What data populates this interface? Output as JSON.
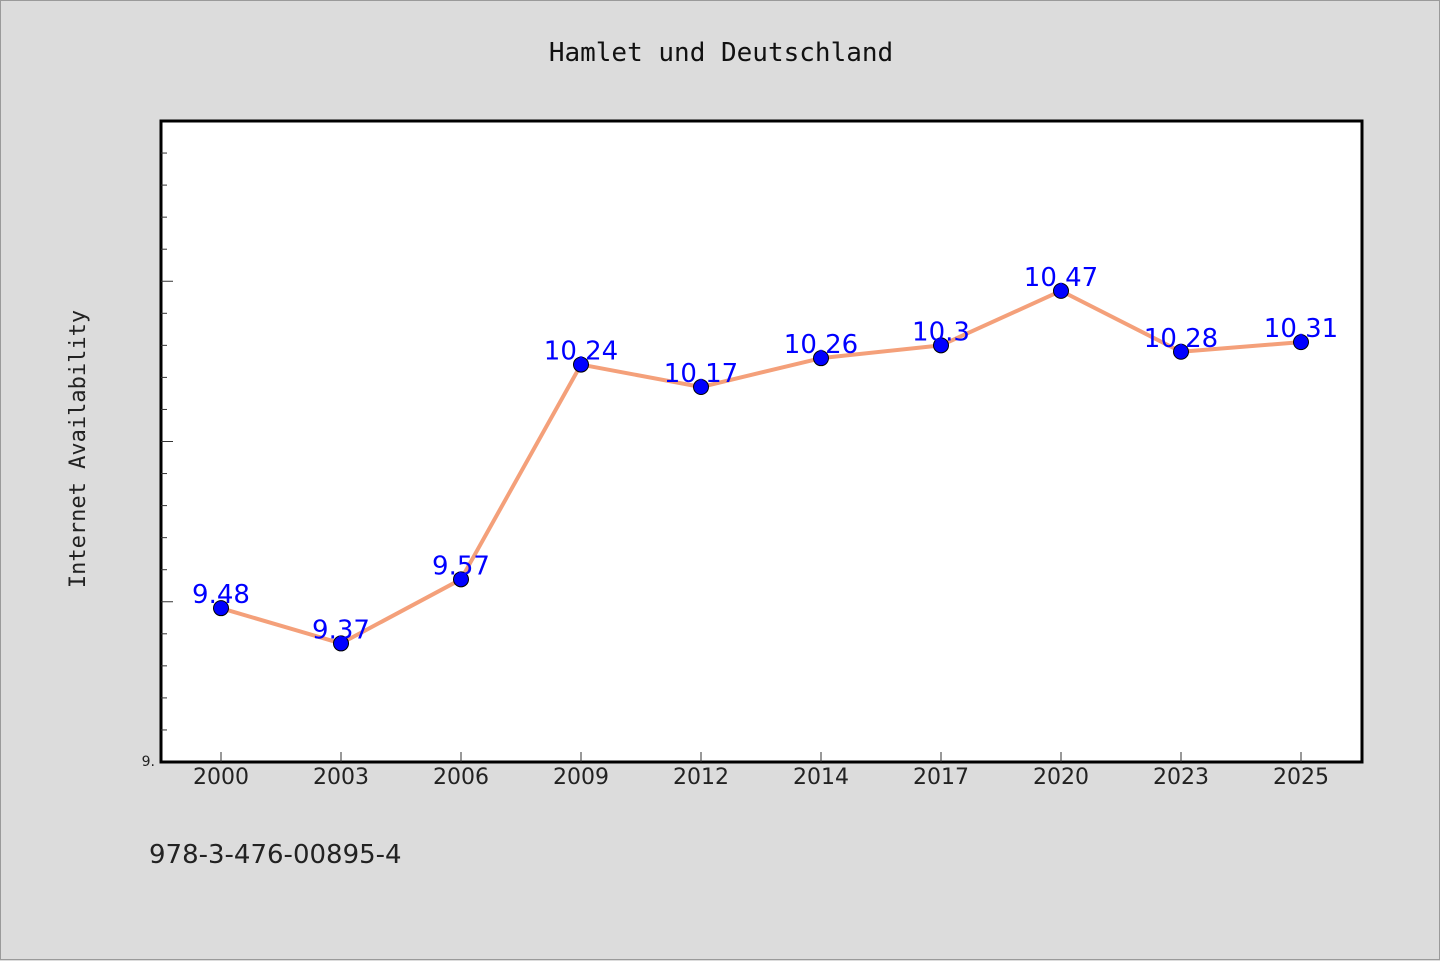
{
  "chart_data": {
    "type": "line",
    "title": "Hamlet und Deutschland",
    "xlabel": "",
    "ylabel": "Internet Availability",
    "categories": [
      "2000",
      "2003",
      "2006",
      "2009",
      "2012",
      "2014",
      "2017",
      "2020",
      "2023",
      "2025"
    ],
    "series": [
      {
        "values": [
          9.48,
          9.37,
          9.57,
          10.24,
          10.17,
          10.26,
          10.3,
          10.47,
          10.28,
          10.31
        ]
      }
    ],
    "data_labels": [
      "9.48",
      "9.37",
      "9.57",
      "10.24",
      "10.17",
      "10.26",
      "10.3",
      "10.47",
      "10.28",
      "10.31"
    ],
    "ytick_labels": [
      "9."
    ],
    "ylim": [
      9.0,
      11.0
    ],
    "grid": false,
    "legend": "none",
    "colors": {
      "line": "#f4a07a",
      "marker": "#0000ff",
      "label": "#0000ff",
      "background": "#dcdcdc",
      "plot_background": "#ffffff"
    }
  },
  "footer": {
    "isbn": "978-3-476-00895-4"
  }
}
